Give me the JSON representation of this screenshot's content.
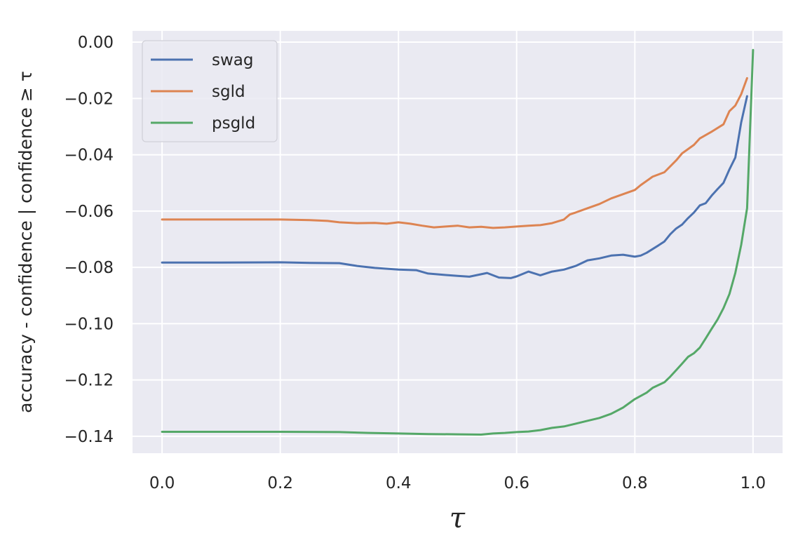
{
  "chart_data": {
    "type": "line",
    "title": "",
    "xlabel": "τ",
    "ylabel": "accuracy - confidence | confidence ≥ τ",
    "xlim": [
      -0.05,
      1.05
    ],
    "ylim": [
      -0.146,
      0.004
    ],
    "xticks": [
      0.0,
      0.2,
      0.4,
      0.6,
      0.8,
      1.0
    ],
    "xtick_labels": [
      "0.0",
      "0.2",
      "0.4",
      "0.6",
      "0.8",
      "1.0"
    ],
    "yticks": [
      0.0,
      -0.02,
      -0.04,
      -0.06,
      -0.08,
      -0.1,
      -0.12,
      -0.14
    ],
    "ytick_labels": [
      "0.00",
      "−0.02",
      "−0.04",
      "−0.06",
      "−0.08",
      "−0.10",
      "−0.12",
      "−0.14"
    ],
    "grid": true,
    "legend_position": "top-left",
    "background_color": "#eaeaf2",
    "series": [
      {
        "name": "swag",
        "color": "#4c72b0",
        "x": [
          0.0,
          0.1,
          0.2,
          0.25,
          0.3,
          0.33,
          0.36,
          0.4,
          0.43,
          0.45,
          0.48,
          0.5,
          0.52,
          0.55,
          0.57,
          0.59,
          0.6,
          0.62,
          0.64,
          0.66,
          0.68,
          0.7,
          0.72,
          0.74,
          0.76,
          0.78,
          0.8,
          0.81,
          0.82,
          0.84,
          0.85,
          0.86,
          0.87,
          0.88,
          0.89,
          0.9,
          0.91,
          0.92,
          0.93,
          0.94,
          0.95,
          0.96,
          0.97,
          0.98,
          0.99
        ],
        "y": [
          -0.0783,
          -0.0783,
          -0.0782,
          -0.0784,
          -0.0785,
          -0.0795,
          -0.0802,
          -0.0808,
          -0.081,
          -0.0822,
          -0.0827,
          -0.083,
          -0.0833,
          -0.082,
          -0.0836,
          -0.0838,
          -0.0832,
          -0.0815,
          -0.0828,
          -0.0815,
          -0.0808,
          -0.0795,
          -0.0775,
          -0.0768,
          -0.0758,
          -0.0755,
          -0.0762,
          -0.0758,
          -0.0748,
          -0.0722,
          -0.0708,
          -0.0682,
          -0.0662,
          -0.0648,
          -0.0625,
          -0.0605,
          -0.058,
          -0.0572,
          -0.0545,
          -0.0522,
          -0.05,
          -0.0452,
          -0.041,
          -0.0285,
          -0.0192
        ]
      },
      {
        "name": "sgld",
        "color": "#dd8452",
        "x": [
          0.0,
          0.1,
          0.2,
          0.25,
          0.28,
          0.3,
          0.33,
          0.36,
          0.38,
          0.4,
          0.42,
          0.44,
          0.46,
          0.48,
          0.5,
          0.52,
          0.54,
          0.56,
          0.58,
          0.6,
          0.62,
          0.64,
          0.66,
          0.68,
          0.69,
          0.7,
          0.72,
          0.74,
          0.76,
          0.78,
          0.8,
          0.81,
          0.83,
          0.85,
          0.87,
          0.88,
          0.9,
          0.91,
          0.93,
          0.95,
          0.96,
          0.97,
          0.98,
          0.99
        ],
        "y": [
          -0.063,
          -0.063,
          -0.063,
          -0.0632,
          -0.0635,
          -0.064,
          -0.0643,
          -0.0642,
          -0.0645,
          -0.064,
          -0.0645,
          -0.0652,
          -0.0658,
          -0.0655,
          -0.0652,
          -0.0658,
          -0.0656,
          -0.066,
          -0.0658,
          -0.0655,
          -0.0652,
          -0.065,
          -0.0643,
          -0.063,
          -0.0612,
          -0.0605,
          -0.059,
          -0.0575,
          -0.0555,
          -0.054,
          -0.0525,
          -0.0508,
          -0.0478,
          -0.0462,
          -0.042,
          -0.0395,
          -0.0365,
          -0.0342,
          -0.0318,
          -0.0292,
          -0.0245,
          -0.0225,
          -0.0185,
          -0.0128
        ]
      },
      {
        "name": "psgld",
        "color": "#55a868",
        "x": [
          0.0,
          0.1,
          0.2,
          0.3,
          0.35,
          0.4,
          0.45,
          0.5,
          0.54,
          0.56,
          0.58,
          0.6,
          0.62,
          0.64,
          0.66,
          0.68,
          0.7,
          0.72,
          0.74,
          0.76,
          0.78,
          0.8,
          0.82,
          0.83,
          0.85,
          0.86,
          0.87,
          0.88,
          0.89,
          0.9,
          0.91,
          0.92,
          0.93,
          0.94,
          0.95,
          0.96,
          0.97,
          0.98,
          0.99,
          1.0
        ],
        "y": [
          -0.1384,
          -0.1384,
          -0.1384,
          -0.1385,
          -0.1388,
          -0.139,
          -0.1392,
          -0.1393,
          -0.1394,
          -0.139,
          -0.1388,
          -0.1385,
          -0.1383,
          -0.1378,
          -0.137,
          -0.1365,
          -0.1355,
          -0.1345,
          -0.1335,
          -0.132,
          -0.1298,
          -0.1268,
          -0.1245,
          -0.1228,
          -0.1208,
          -0.1188,
          -0.1165,
          -0.1142,
          -0.1118,
          -0.1105,
          -0.1085,
          -0.1052,
          -0.1018,
          -0.0985,
          -0.0945,
          -0.0895,
          -0.082,
          -0.072,
          -0.059,
          -0.0028
        ]
      }
    ]
  }
}
